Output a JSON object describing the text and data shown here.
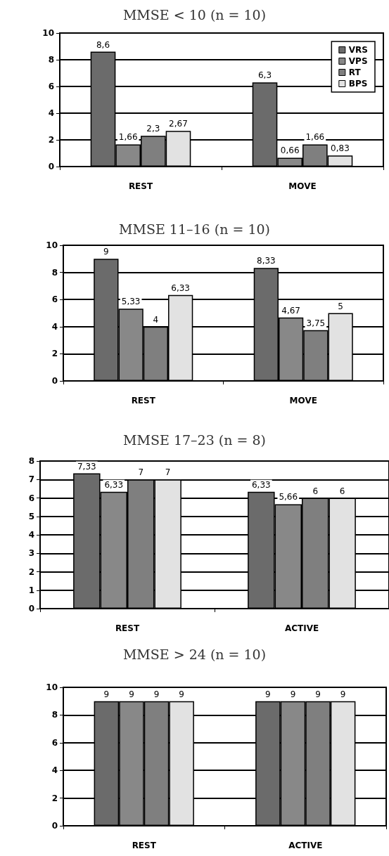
{
  "chart_data": [
    {
      "type": "bar",
      "title": "MMSE < 10 (n = 10)",
      "categories": [
        "REST",
        "MOVE"
      ],
      "ylim": [
        0,
        10
      ],
      "yticks": [
        0,
        2,
        4,
        6,
        8,
        10
      ],
      "grid": "y",
      "legend": "top right",
      "series": [
        {
          "name": "VRS",
          "color": "#6b6b6b",
          "values": [
            8.6,
            6.3
          ],
          "value_labels": [
            "8,6",
            "6,3"
          ]
        },
        {
          "name": "VPS",
          "color": "#888888",
          "values": [
            1.66,
            0.66
          ],
          "value_labels": [
            "1,66",
            "0,66"
          ]
        },
        {
          "name": "RT",
          "color": "#7f7f7f",
          "values": [
            2.3,
            1.66
          ],
          "value_labels": [
            "2,3",
            "1,66"
          ]
        },
        {
          "name": "BPS",
          "color": "#e2e2e2",
          "values": [
            2.67,
            0.83
          ],
          "value_labels": [
            "2,67",
            "0,83"
          ]
        }
      ]
    },
    {
      "type": "bar",
      "title": "MMSE 11–16 (n = 10)",
      "categories": [
        "REST",
        "MOVE"
      ],
      "ylim": [
        0,
        10
      ],
      "yticks": [
        0,
        2,
        4,
        6,
        8,
        10
      ],
      "grid": "y",
      "series": [
        {
          "color": "#6b6b6b",
          "values": [
            9,
            8.33
          ],
          "value_labels": [
            "9",
            "8,33"
          ]
        },
        {
          "color": "#888888",
          "values": [
            5.33,
            4.67
          ],
          "value_labels": [
            "5,33",
            "4,67"
          ]
        },
        {
          "color": "#7f7f7f",
          "values": [
            4,
            3.75
          ],
          "value_labels": [
            "4",
            "3,75"
          ]
        },
        {
          "color": "#e2e2e2",
          "values": [
            6.33,
            5
          ],
          "value_labels": [
            "6,33",
            "5"
          ]
        }
      ]
    },
    {
      "type": "bar",
      "title": "MMSE 17–23 (n = 8)",
      "categories": [
        "REST",
        "ACTIVE"
      ],
      "ylim": [
        0,
        8
      ],
      "yticks": [
        0,
        1,
        2,
        3,
        4,
        5,
        6,
        7,
        8
      ],
      "grid": "y",
      "series": [
        {
          "color": "#6b6b6b",
          "values": [
            7.33,
            6.33
          ],
          "value_labels": [
            "7,33",
            "6,33"
          ]
        },
        {
          "color": "#888888",
          "values": [
            6.33,
            5.66
          ],
          "value_labels": [
            "6,33",
            "5,66"
          ]
        },
        {
          "color": "#7f7f7f",
          "values": [
            7,
            6
          ],
          "value_labels": [
            "7",
            "6"
          ]
        },
        {
          "color": "#e2e2e2",
          "values": [
            7,
            6
          ],
          "value_labels": [
            "7",
            "6"
          ]
        }
      ]
    },
    {
      "type": "bar",
      "title": "MMSE > 24 (n = 10)",
      "categories": [
        "REST",
        "ACTIVE"
      ],
      "ylim": [
        0,
        10
      ],
      "yticks": [
        0,
        2,
        4,
        6,
        8,
        10
      ],
      "grid": "y",
      "series": [
        {
          "color": "#6b6b6b",
          "values": [
            9,
            9
          ],
          "value_labels": [
            "9",
            "9"
          ]
        },
        {
          "color": "#888888",
          "values": [
            9,
            9
          ],
          "value_labels": [
            "9",
            "9"
          ]
        },
        {
          "color": "#7f7f7f",
          "values": [
            9,
            9
          ],
          "value_labels": [
            "9",
            "9"
          ]
        },
        {
          "color": "#e2e2e2",
          "values": [
            9,
            9
          ],
          "value_labels": [
            "9",
            "9"
          ]
        }
      ]
    }
  ]
}
